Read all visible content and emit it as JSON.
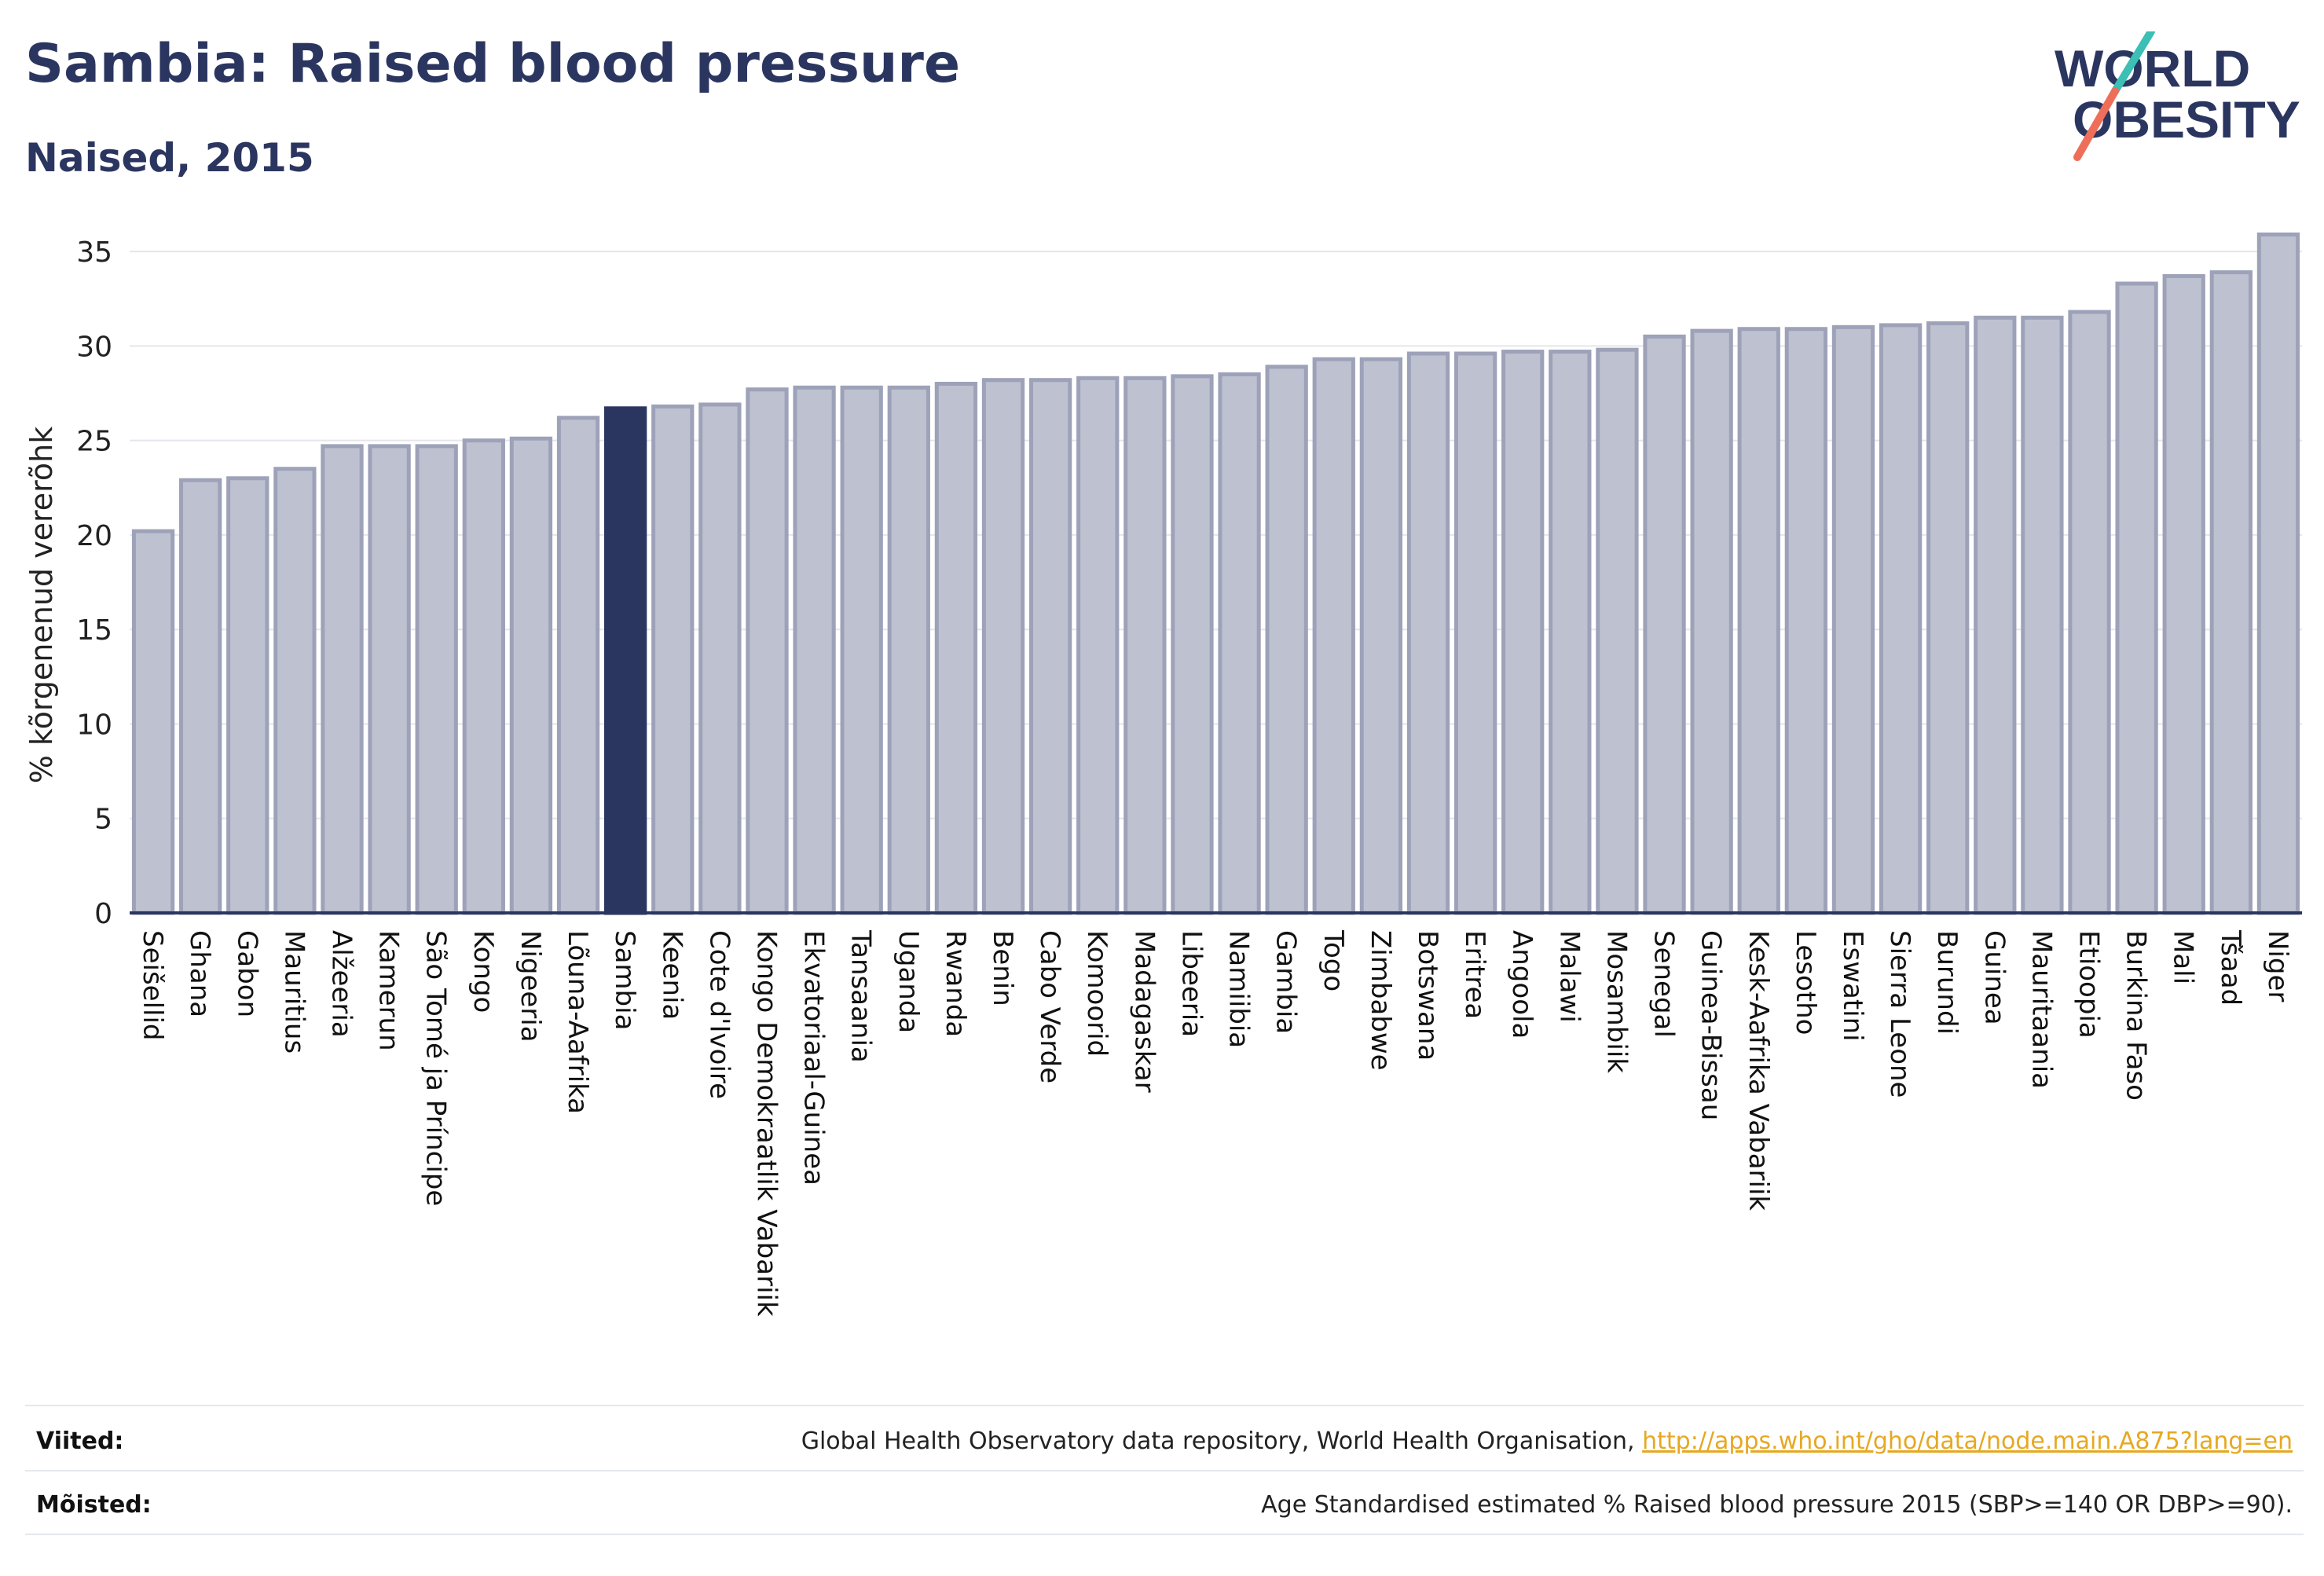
{
  "header": {
    "title": "Sambia: Raised blood pressure",
    "subtitle": "Naised, 2015"
  },
  "logo": {
    "line1": "WORLD",
    "line2": "OBESITY"
  },
  "chart_data": {
    "type": "bar",
    "ylabel": "% kõrgenenud vererõhk",
    "ylim": [
      0,
      37
    ],
    "yticks": [
      0,
      5,
      10,
      15,
      20,
      25,
      30,
      35
    ],
    "grid": true,
    "highlight": "Sambia",
    "highlight_color": "#2b3660",
    "bar_color": "#bec1d0",
    "bar_edge_color": "#9da2b9",
    "categories": [
      "Seišellid",
      "Ghana",
      "Gabon",
      "Mauritius",
      "Alžeeria",
      "Kamerun",
      "São Tomé ja Príncipe",
      "Kongo",
      "Nigeeria",
      "Lõuna-Aafrika",
      "Sambia",
      "Keenia",
      "Cote d'Ivoire",
      "Kongo Demokraatlik Vabariik",
      "Ekvatoriaal-Guinea",
      "Tansaania",
      "Uganda",
      "Rwanda",
      "Benin",
      "Cabo Verde",
      "Komoorid",
      "Madagaskar",
      "Libeeria",
      "Namiibia",
      "Gambia",
      "Togo",
      "Zimbabwe",
      "Botswana",
      "Eritrea",
      "Angoola",
      "Malawi",
      "Mosambiik",
      "Senegal",
      "Guinea-Bissau",
      "Kesk-Aafrika Vabariik",
      "Lesotho",
      "Eswatini",
      "Sierra Leone",
      "Burundi",
      "Guinea",
      "Mauritaania",
      "Etioopia",
      "Burkina Faso",
      "Mali",
      "Tšaad",
      "Niger"
    ],
    "values": [
      20.2,
      22.9,
      23.0,
      23.5,
      24.7,
      24.7,
      24.7,
      25.0,
      25.1,
      26.2,
      26.7,
      26.8,
      26.9,
      27.7,
      27.8,
      27.8,
      27.8,
      28.0,
      28.2,
      28.2,
      28.3,
      28.3,
      28.4,
      28.5,
      28.9,
      29.3,
      29.3,
      29.6,
      29.6,
      29.7,
      29.7,
      29.8,
      30.5,
      30.8,
      30.9,
      30.9,
      31.0,
      31.1,
      31.2,
      31.5,
      31.5,
      31.8,
      33.3,
      33.7,
      33.9,
      35.9
    ]
  },
  "footer": {
    "sources_label": "Viited:",
    "sources_text": "Global Health Observatory data repository, World Health Organisation,",
    "sources_link": "http://apps.who.int/gho/data/node.main.A875?lang=en",
    "definitions_label": "Mõisted:",
    "definitions_text": "Age Standardised estimated % Raised blood pressure 2015 (SBP>=140 OR DBP>=90)."
  }
}
